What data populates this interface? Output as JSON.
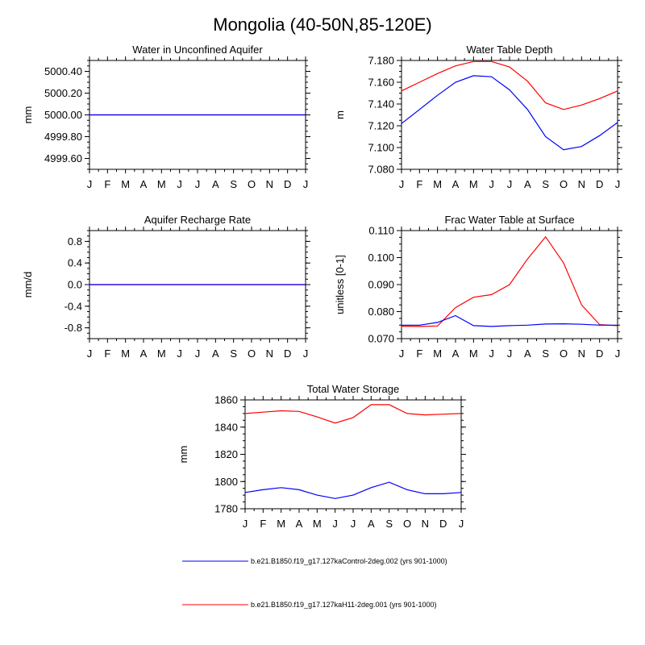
{
  "figure": {
    "title": "Mongolia (40-50N,85-120E)"
  },
  "colors": {
    "control": "#0000ff",
    "experiment": "#ff0000",
    "axis": "#000000"
  },
  "legend": [
    {
      "key": "control",
      "label": "b.e21.B1850.f19_g17.127kaControl-2deg.002 (yrs 901-1000)"
    },
    {
      "key": "experiment",
      "label": "b.e21.B1850.f19_g17.127kaH11-2deg.001 (yrs 901-1000)"
    }
  ],
  "chart_data": [
    {
      "type": "line",
      "title": "Water in Unconfined Aquifer",
      "ylabel": "mm",
      "xlabel": "",
      "categories": [
        "J",
        "F",
        "M",
        "A",
        "M",
        "J",
        "J",
        "A",
        "S",
        "O",
        "N",
        "D",
        "J"
      ],
      "ylim": [
        4999.5,
        5000.5
      ],
      "yticks": [
        4999.6,
        4999.8,
        5000.0,
        5000.2,
        5000.4
      ],
      "ytick_labels": [
        "4999.60",
        "4999.80",
        "5000.00",
        "5000.20",
        "5000.40"
      ],
      "series": [
        {
          "key": "control",
          "values": [
            5000,
            5000,
            5000,
            5000,
            5000,
            5000,
            5000,
            5000,
            5000,
            5000,
            5000,
            5000,
            5000
          ]
        },
        {
          "key": "experiment",
          "values": [
            5000,
            5000,
            5000,
            5000,
            5000,
            5000,
            5000,
            5000,
            5000,
            5000,
            5000,
            5000,
            5000
          ]
        }
      ]
    },
    {
      "type": "line",
      "title": "Water Table Depth",
      "ylabel": "m",
      "xlabel": "",
      "categories": [
        "J",
        "F",
        "M",
        "A",
        "M",
        "J",
        "J",
        "A",
        "S",
        "O",
        "N",
        "D",
        "J"
      ],
      "ylim": [
        7.08,
        7.18
      ],
      "yticks": [
        7.08,
        7.1,
        7.12,
        7.14,
        7.16,
        7.18
      ],
      "ytick_labels": [
        "7.080",
        "7.100",
        "7.120",
        "7.140",
        "7.160",
        "7.180"
      ],
      "series": [
        {
          "key": "control",
          "values": [
            7.122,
            7.135,
            7.148,
            7.16,
            7.166,
            7.165,
            7.153,
            7.135,
            7.11,
            7.098,
            7.101,
            7.111,
            7.123
          ]
        },
        {
          "key": "experiment",
          "values": [
            7.152,
            7.16,
            7.168,
            7.175,
            7.179,
            7.179,
            7.174,
            7.161,
            7.141,
            7.135,
            7.139,
            7.145,
            7.152
          ]
        }
      ]
    },
    {
      "type": "line",
      "title": "Aquifer Recharge Rate",
      "ylabel": "mm/d",
      "xlabel": "",
      "categories": [
        "J",
        "F",
        "M",
        "A",
        "M",
        "J",
        "J",
        "A",
        "S",
        "O",
        "N",
        "D",
        "J"
      ],
      "ylim": [
        -1.0,
        1.0
      ],
      "yticks": [
        -0.8,
        -0.4,
        0.0,
        0.4,
        0.8
      ],
      "ytick_labels": [
        "-0.8",
        "-0.4",
        "0.0",
        "0.4",
        "0.8"
      ],
      "series": [
        {
          "key": "control",
          "values": [
            0,
            0,
            0,
            0,
            0,
            0,
            0,
            0,
            0,
            0,
            0,
            0,
            0
          ]
        },
        {
          "key": "experiment",
          "values": [
            0,
            0,
            0,
            0,
            0,
            0,
            0,
            0,
            0,
            0,
            0,
            0,
            0
          ]
        }
      ]
    },
    {
      "type": "line",
      "title": "Frac Water Table at Surface",
      "ylabel": "unitless [0-1]",
      "xlabel": "",
      "categories": [
        "J",
        "F",
        "M",
        "A",
        "M",
        "J",
        "J",
        "A",
        "S",
        "O",
        "N",
        "D",
        "J"
      ],
      "ylim": [
        0.07,
        0.11
      ],
      "yticks": [
        0.07,
        0.08,
        0.09,
        0.1,
        0.11
      ],
      "ytick_labels": [
        "0.070",
        "0.080",
        "0.090",
        "0.100",
        "0.110"
      ],
      "series": [
        {
          "key": "control",
          "values": [
            0.075,
            0.075,
            0.076,
            0.0785,
            0.0748,
            0.0745,
            0.0748,
            0.075,
            0.0754,
            0.0755,
            0.0753,
            0.075,
            0.075
          ]
        },
        {
          "key": "experiment",
          "values": [
            0.0746,
            0.0745,
            0.0747,
            0.0815,
            0.0853,
            0.0863,
            0.09,
            0.0995,
            0.1077,
            0.098,
            0.0825,
            0.0752,
            0.0748
          ]
        }
      ]
    },
    {
      "type": "line",
      "title": "Total Water Storage",
      "ylabel": "mm",
      "xlabel": "",
      "categories": [
        "J",
        "F",
        "M",
        "A",
        "M",
        "J",
        "J",
        "A",
        "S",
        "O",
        "N",
        "D",
        "J"
      ],
      "ylim": [
        1780,
        1860
      ],
      "yticks": [
        1780,
        1800,
        1820,
        1840,
        1860
      ],
      "ytick_labels": [
        "1780",
        "1800",
        "1820",
        "1840",
        "1860"
      ],
      "series": [
        {
          "key": "control",
          "values": [
            1792,
            1794,
            1795.5,
            1794,
            1790,
            1787.5,
            1790,
            1795.5,
            1799.5,
            1794,
            1791,
            1791,
            1792
          ]
        },
        {
          "key": "experiment",
          "values": [
            1850,
            1851,
            1852,
            1851.5,
            1847.5,
            1843,
            1847,
            1856.5,
            1856.5,
            1850,
            1849,
            1849.5,
            1850
          ]
        }
      ]
    }
  ]
}
